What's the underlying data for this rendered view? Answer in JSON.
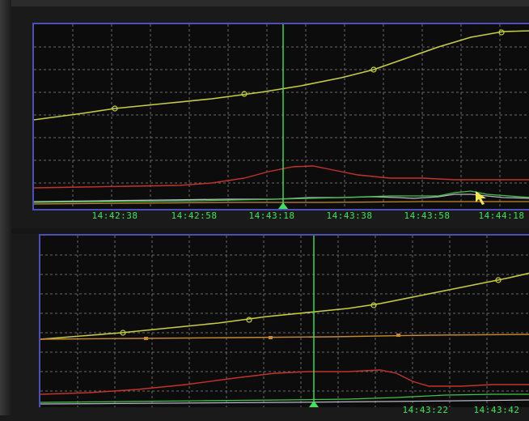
{
  "colors": {
    "background": "#0c0c0c",
    "frame": "#4a50b8",
    "grid": "#6a6a6a",
    "cursor": "#3fe35a",
    "tick_text": "#3fe35a",
    "trace_yellow": "#c8cf3c",
    "trace_red": "#c8322a",
    "trace_orange": "#c88a2a",
    "trace_white": "#b8b8c8",
    "trace_green": "#44c44a"
  },
  "top_chart": {
    "time_ticks": [
      "14:42:38",
      "14:42:58",
      "14:43:18",
      "14:43:38",
      "14:43:58",
      "14:44:18"
    ]
  },
  "bottom_chart": {
    "time_ticks": [
      "14:43:22",
      "14:43:42"
    ]
  },
  "pointer": {
    "icon": "mouse-pointer-icon",
    "color": "#f2e84a"
  }
}
